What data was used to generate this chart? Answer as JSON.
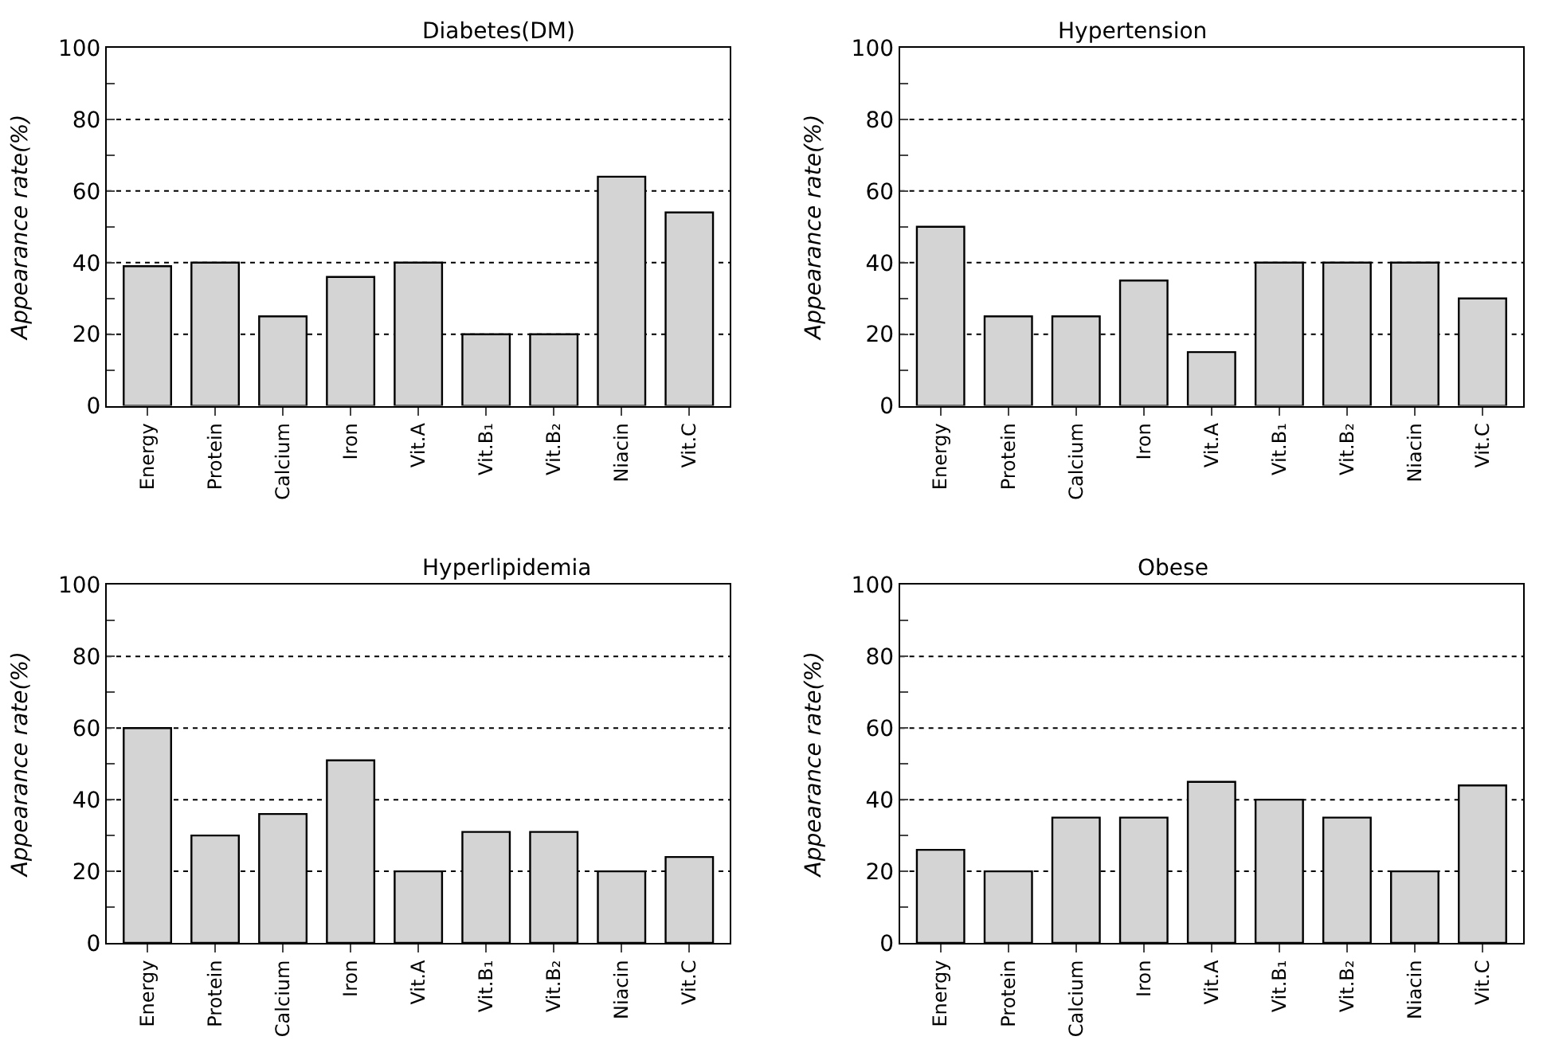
{
  "chart_data": [
    {
      "type": "bar",
      "title": "Diabetes(DM)",
      "ylabel": "Appearance rate(%)",
      "categories": [
        "Energy",
        "Protein",
        "Calcium",
        "Iron",
        "Vit.A",
        "Vit.B₁",
        "Vit.B₂",
        "Niacin",
        "Vit.C"
      ],
      "values": [
        39,
        40,
        25,
        36,
        40,
        20,
        20,
        64,
        54
      ],
      "color": "#d4d4d4",
      "ylim": [
        0,
        100
      ],
      "yticks": [
        0,
        {
          "value": 10,
          "label": null
        },
        20,
        {
          "value": 30,
          "label": null
        },
        40,
        {
          "value": 50,
          "label": null
        },
        60,
        {
          "value": 70,
          "label": null
        },
        80,
        {
          "value": 90,
          "label": null
        },
        100
      ],
      "grid": "y",
      "line_style": "dotted"
    },
    {
      "type": "bar",
      "title": "Hypertension",
      "ylabel": "Appearance rate(%)",
      "categories": [
        "Energy",
        "Protein",
        "Calcium",
        "Iron",
        "Vit.A",
        "Vit.B₁",
        "Vit.B₂",
        "Niacin",
        "Vit.C"
      ],
      "values": [
        50,
        25,
        25,
        35,
        15,
        40,
        40,
        40,
        30
      ],
      "color": "#d4d4d4",
      "ylim": [
        0,
        100
      ],
      "yticks": [
        0,
        {
          "value": 10,
          "label": null
        },
        20,
        {
          "value": 30,
          "label": null
        },
        40,
        {
          "value": 50,
          "label": null
        },
        60,
        {
          "value": 70,
          "label": null
        },
        80,
        {
          "value": 90,
          "label": null
        },
        100
      ],
      "grid": "y",
      "line_style": "dotted"
    },
    {
      "type": "bar",
      "title": "Hyperlipidemia",
      "ylabel": "Appearance rate(%)",
      "categories": [
        "Energy",
        "Protein",
        "Calcium",
        "Iron",
        "Vit.A",
        "Vit.B₁",
        "Vit.B₂",
        "Niacin",
        "Vit.C"
      ],
      "values": [
        60,
        30,
        36,
        51,
        20,
        31,
        31,
        20,
        24
      ],
      "color": "#d4d4d4",
      "ylim": [
        0,
        100
      ],
      "yticks": [
        0,
        {
          "value": 10,
          "label": null
        },
        20,
        {
          "value": 30,
          "label": null
        },
        40,
        {
          "value": 50,
          "label": null
        },
        60,
        {
          "value": 70,
          "label": null
        },
        80,
        {
          "value": 90,
          "label": null
        },
        100
      ],
      "grid": "y",
      "line_style": "dotted"
    },
    {
      "type": "bar",
      "title": "Obese",
      "ylabel": "Appearance rate(%)",
      "categories": [
        "Energy",
        "Protein",
        "Calcium",
        "Iron",
        "Vit.A",
        "Vit.B₁",
        "Vit.B₂",
        "Niacin",
        "Vit.C"
      ],
      "values": [
        26,
        20,
        35,
        35,
        45,
        40,
        35,
        20,
        44
      ],
      "color": "#d4d4d4",
      "ylim": [
        0,
        100
      ],
      "yticks": [
        0,
        {
          "value": 10,
          "label": null
        },
        20,
        {
          "value": 30,
          "label": null
        },
        40,
        {
          "value": 50,
          "label": null
        },
        60,
        {
          "value": 70,
          "label": null
        },
        80,
        {
          "value": 90,
          "label": null
        },
        100
      ],
      "grid": "y",
      "line_style": "dotted"
    }
  ]
}
